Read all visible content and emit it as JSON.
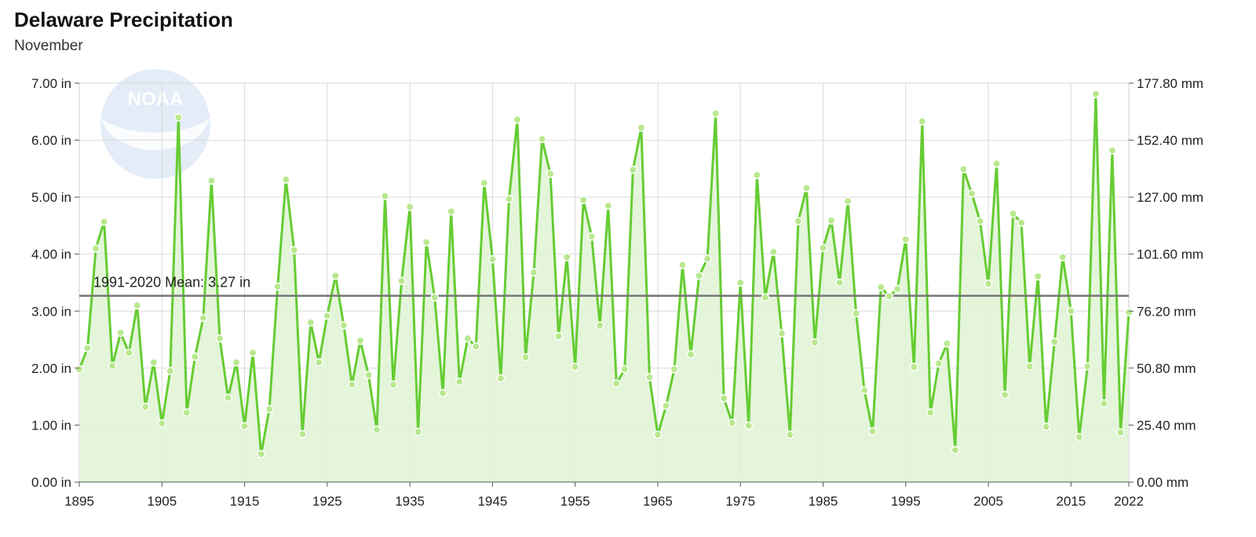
{
  "header": {
    "title": "Delaware Precipitation",
    "subtitle": "November"
  },
  "colors": {
    "line": "#66cc33",
    "fill": "#dff3d4",
    "point_fill": "#b9e88f",
    "mean_line": "#777777",
    "grid": "#d9d9d9",
    "watermark": "#e3ecf7"
  },
  "watermark": {
    "text": "NOAA",
    "icon": "noaa-logo-icon"
  },
  "chart_data": {
    "type": "line",
    "title": "Delaware Precipitation",
    "subtitle": "November",
    "xlabel": "",
    "ylabel": "",
    "xlim": [
      1895,
      2022
    ],
    "ylim": [
      0,
      7
    ],
    "grid": true,
    "x_ticks": [
      "1895",
      "1905",
      "1915",
      "1925",
      "1935",
      "1945",
      "1955",
      "1965",
      "1975",
      "1985",
      "1995",
      "2005",
      "2015",
      "2022"
    ],
    "y_ticks_left": [
      "0.00 in",
      "1.00 in",
      "2.00 in",
      "3.00 in",
      "4.00 in",
      "5.00 in",
      "6.00 in",
      "7.00 in"
    ],
    "y_ticks_right": [
      "0.00 mm",
      "25.40 mm",
      "50.80 mm",
      "76.20 mm",
      "101.60 mm",
      "127.00 mm",
      "152.40 mm",
      "177.80 mm"
    ],
    "mean": {
      "label": "1991-2020 Mean: 3.27 in",
      "value": 3.27
    },
    "x_start": 1895,
    "values": [
      1.98,
      2.35,
      4.1,
      4.57,
      2.04,
      2.62,
      2.27,
      3.1,
      1.32,
      2.1,
      1.03,
      1.95,
      6.4,
      1.22,
      2.2,
      2.88,
      5.29,
      2.52,
      1.48,
      2.1,
      0.98,
      2.27,
      0.49,
      1.28,
      3.43,
      5.31,
      4.07,
      0.84,
      2.8,
      2.1,
      2.92,
      3.62,
      2.75,
      1.71,
      2.48,
      1.88,
      0.92,
      5.02,
      1.71,
      3.53,
      4.83,
      0.88,
      4.21,
      3.24,
      1.56,
      4.75,
      1.76,
      2.52,
      2.38,
      5.25,
      3.91,
      1.82,
      4.97,
      6.36,
      2.19,
      3.68,
      6.02,
      5.41,
      2.56,
      3.95,
      2.02,
      4.95,
      4.31,
      2.75,
      4.85,
      1.73,
      1.98,
      5.48,
      6.22,
      1.84,
      0.83,
      1.34,
      1.98,
      3.81,
      2.24,
      3.62,
      3.92,
      6.47,
      1.47,
      1.04,
      3.5,
      0.99,
      5.39,
      3.24,
      4.04,
      2.61,
      0.83,
      4.58,
      5.16,
      2.45,
      4.11,
      4.59,
      3.5,
      4.93,
      2.96,
      1.61,
      0.89,
      3.42,
      3.26,
      3.39,
      4.26,
      2.02,
      6.33,
      1.22,
      2.08,
      2.43,
      0.56,
      5.49,
      5.06,
      4.58,
      3.48,
      5.59,
      1.53,
      4.71,
      4.55,
      2.03,
      3.61,
      0.97,
      2.46,
      3.95,
      3.0,
      0.79,
      2.03,
      6.81,
      1.38,
      5.82,
      0.87,
      2.98
    ]
  }
}
